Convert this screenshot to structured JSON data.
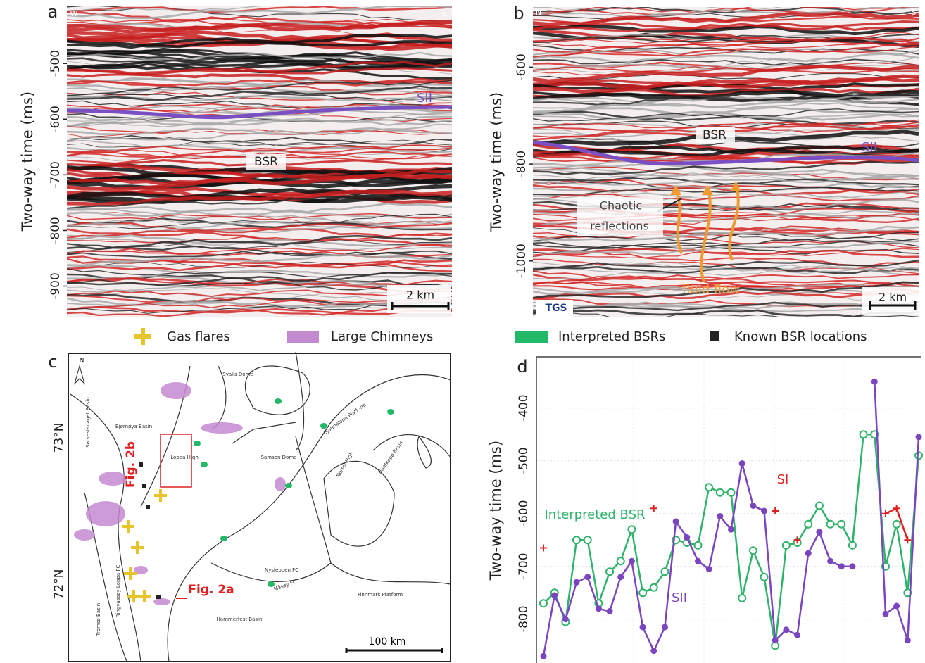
{
  "chart_data": [
    {
      "type": "seismic",
      "panel": "a",
      "ylabel": "Two-way time (ms)",
      "ylim": [
        -955,
        -396
      ],
      "yticks": [
        -500,
        -600,
        -700,
        -800,
        -900
      ],
      "annotations": [
        "W",
        "E",
        "SII",
        "BSR",
        "2 km"
      ]
    },
    {
      "type": "seismic",
      "panel": "b",
      "ylabel": "Two-way time (ms)",
      "ylim": [
        -1115,
        -476
      ],
      "yticks": [
        -600,
        -800,
        -1000
      ],
      "annotations": [
        "N",
        "S",
        "BSR",
        "SII",
        "Chaotic",
        "reflections",
        "fluid flow",
        "TGS",
        "2 km"
      ]
    },
    {
      "type": "map",
      "panel": "c",
      "legend": [
        {
          "name": "Gas flares",
          "color": "#e6c42a"
        },
        {
          "name": "Large Chimneys",
          "color": "#c48ad0"
        },
        {
          "name": "Interpreted BSRs",
          "color": "#22b868"
        },
        {
          "name": "Known BSR locations",
          "color": "#222222"
        }
      ],
      "north": "N",
      "lat_labels": [
        "73°N",
        "72°N"
      ],
      "fig_labels": [
        "Fig. 2b",
        "Fig. 2a"
      ],
      "scale": "100 km",
      "places": [
        "Bjørnøya Basin",
        "Loppa High",
        "Samson Dome",
        "Norsel High",
        "Nordkapp Basin",
        "Bjarmeland Platform",
        "Finnmark Platform",
        "Hammerfest Basin",
        "Tromsø Basin",
        "Ringvassøy-Loppa FC",
        "Måsøy FC",
        "Nysleppen FC",
        "Sørvestsnaget Basin",
        "Svalis Dome"
      ]
    },
    {
      "type": "line",
      "panel": "d",
      "ylabel": "Two-way time (ms)",
      "categories": [
        null,
        null,
        null,
        null,
        null,
        null,
        null,
        null,
        null,
        null,
        null,
        null,
        null,
        null,
        null,
        null,
        null,
        null,
        null,
        null,
        null,
        null,
        null,
        null,
        null,
        null,
        null,
        null,
        null,
        null,
        null,
        null,
        null,
        null,
        null
      ],
      "ylim": [
        -883,
        -303
      ],
      "yticks": [
        -400,
        -500,
        -600,
        -700,
        -800
      ],
      "grid": true,
      "series": [
        {
          "name": "Interpreted BSR",
          "color": "#2fb36a",
          "marker": "circle",
          "values": [
            -770,
            -750,
            -805,
            -650,
            -650,
            -770,
            -710,
            -690,
            -630,
            -750,
            -740,
            -710,
            -650,
            -655,
            -660,
            -550,
            -560,
            -560,
            -760,
            -670,
            -720,
            -850,
            -660,
            -655,
            -620,
            -585,
            -620,
            -620,
            -660,
            -450,
            -450,
            -700,
            -620,
            -750,
            -490
          ]
        },
        {
          "name": "SII",
          "color": "#7b45c0",
          "marker": "dot",
          "values": [
            -870,
            -755,
            -800,
            -730,
            -720,
            -780,
            -785,
            -720,
            -690,
            -815,
            -860,
            -815,
            -615,
            -645,
            -690,
            -705,
            -605,
            -630,
            -505,
            -585,
            -595,
            -840,
            -820,
            -830,
            -675,
            -635,
            -690,
            -700,
            -700,
            null,
            -350,
            -790,
            -775,
            -840,
            -455
          ]
        },
        {
          "name": "SI",
          "color": "#e02020",
          "marker": "plus",
          "values": [
            -665,
            null,
            null,
            null,
            null,
            null,
            null,
            null,
            null,
            null,
            -590,
            null,
            null,
            null,
            null,
            null,
            null,
            null,
            null,
            null,
            null,
            -595,
            null,
            -650,
            null,
            null,
            null,
            null,
            null,
            null,
            null,
            -600,
            -590,
            -650,
            null
          ]
        }
      ]
    }
  ]
}
